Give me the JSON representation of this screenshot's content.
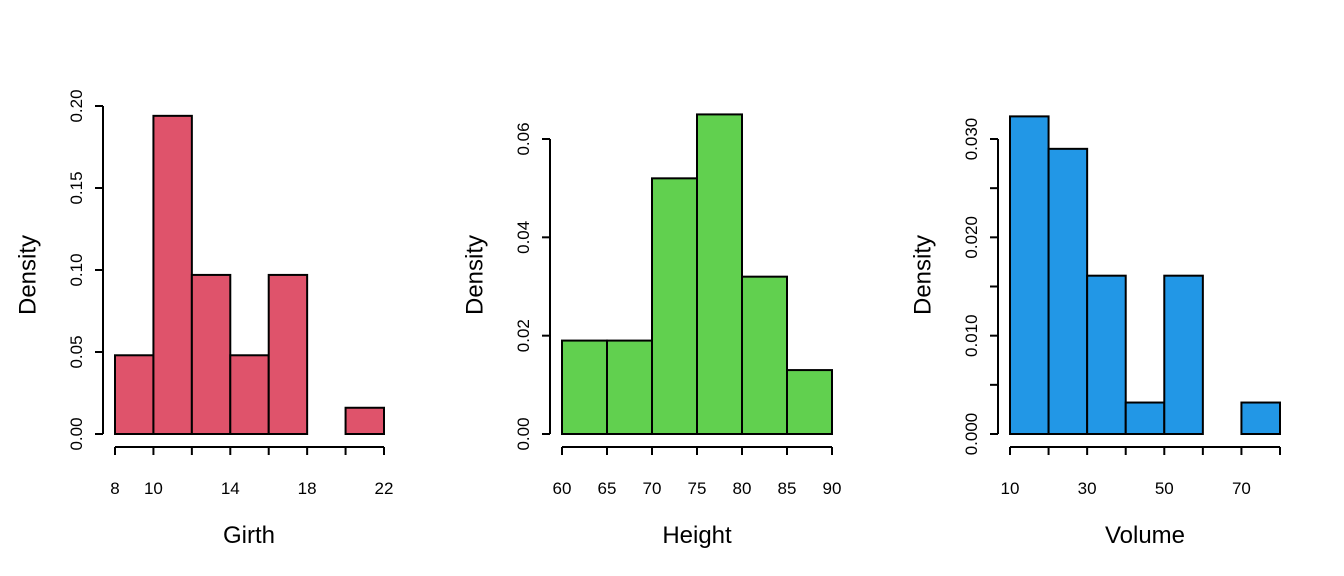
{
  "chart_data": [
    {
      "type": "histogram",
      "xlabel": "Girth",
      "ylabel": "Density",
      "color": "#DF536B",
      "bins": [
        8,
        10,
        12,
        14,
        16,
        18,
        20,
        22
      ],
      "values": [
        0.048,
        0.194,
        0.097,
        0.048,
        0.097,
        0.0,
        0.016
      ],
      "xticks": [
        8,
        10,
        14,
        18,
        22
      ],
      "yticks": [
        0.0,
        0.05,
        0.1,
        0.15,
        0.2
      ],
      "yticklabels": [
        "0.00",
        "0.05",
        "0.10",
        "0.15",
        "0.20"
      ],
      "xlim": [
        8,
        22
      ],
      "ylim": [
        0,
        0.2
      ]
    },
    {
      "type": "histogram",
      "xlabel": "Height",
      "ylabel": "Density",
      "color": "#61D04F",
      "bins": [
        60,
        65,
        70,
        75,
        80,
        85,
        90
      ],
      "values": [
        0.019,
        0.019,
        0.052,
        0.065,
        0.032,
        0.013
      ],
      "xticks": [
        60,
        65,
        70,
        75,
        80,
        85,
        90
      ],
      "yticks": [
        0.0,
        0.02,
        0.04,
        0.06
      ],
      "yticklabels": [
        "0.00",
        "0.02",
        "0.04",
        "0.06"
      ],
      "xlim": [
        60,
        90
      ],
      "ylim": [
        0,
        0.06
      ]
    },
    {
      "type": "histogram",
      "xlabel": "Volume",
      "ylabel": "Density",
      "color": "#2297E6",
      "bins": [
        10,
        20,
        30,
        40,
        50,
        60,
        70,
        80
      ],
      "values": [
        0.0323,
        0.029,
        0.0161,
        0.0032,
        0.0161,
        0.0,
        0.0032
      ],
      "xticks": [
        10,
        20,
        30,
        40,
        50,
        60,
        70,
        80
      ],
      "xticklabels": [
        "10",
        "",
        "30",
        "",
        "50",
        "",
        "70",
        ""
      ],
      "yticks": [
        0.0,
        0.01,
        0.02,
        0.03
      ],
      "yminor": [
        0.005,
        0.015,
        0.025
      ],
      "yticklabels": [
        "0.000",
        "0.010",
        "0.020",
        "0.030"
      ],
      "xlim": [
        10,
        80
      ],
      "ylim": [
        0,
        0.03
      ]
    }
  ]
}
